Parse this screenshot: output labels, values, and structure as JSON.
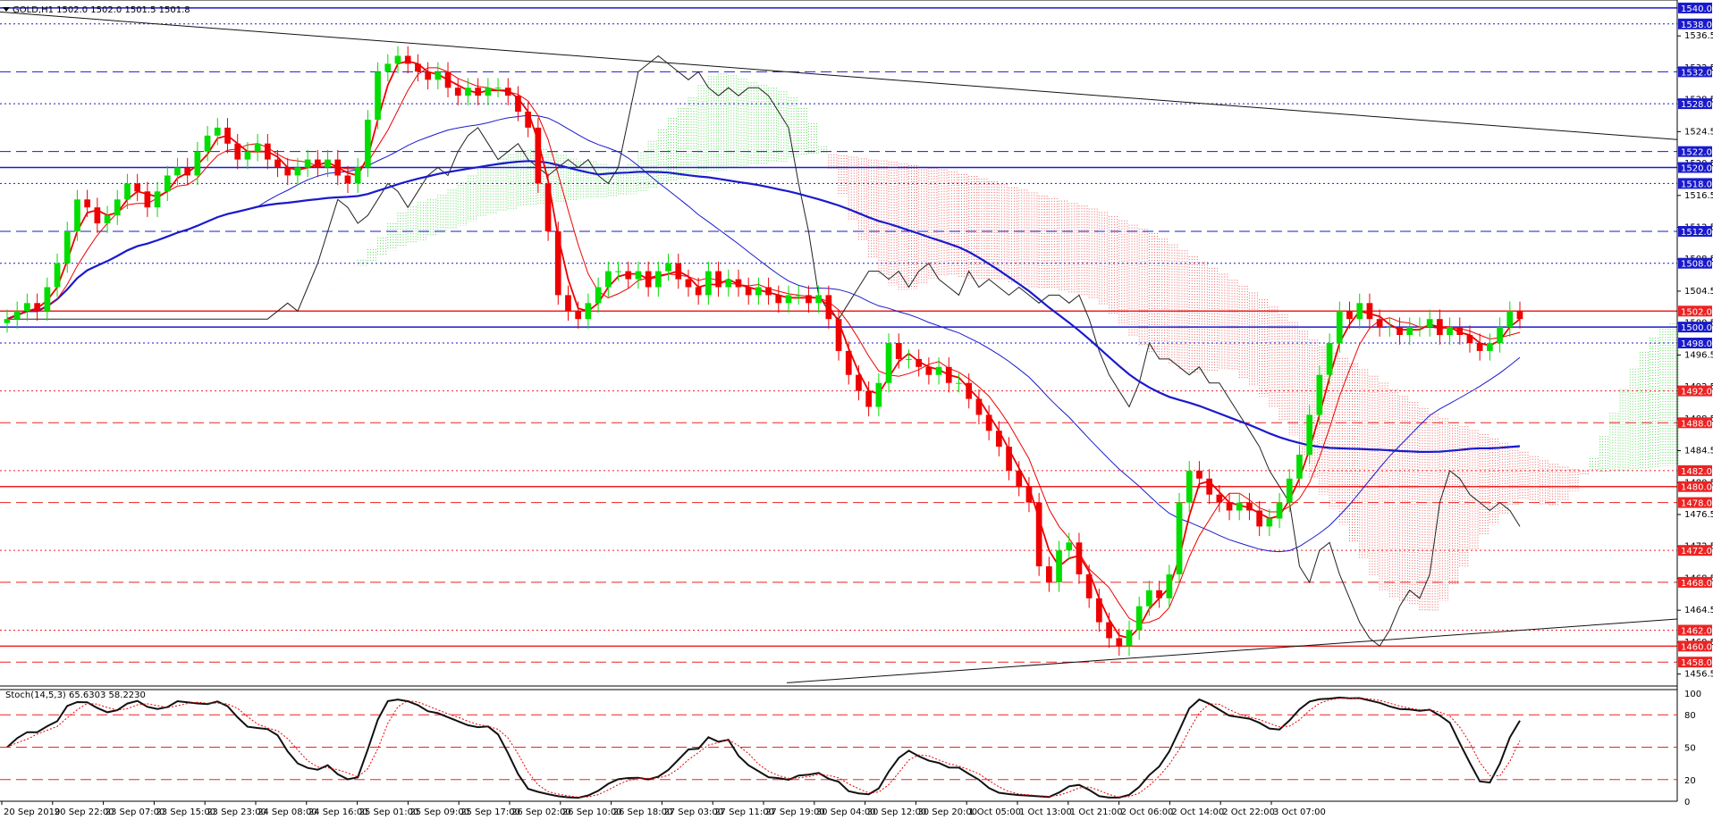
{
  "header": {
    "title": "GOLD,H1  1502.0 1502.0 1501.5 1501.8"
  },
  "oscillator": {
    "title": "Stoch(14,5,3) 65.6303 58.2230",
    "levels": [
      20,
      50,
      80
    ],
    "ticks": [
      "100",
      "80",
      "50",
      "20",
      "0"
    ]
  },
  "colors": {
    "up": "#00dd00",
    "down": "#ee0000",
    "bg": "#ffffff",
    "grid_blue": "#0000cc",
    "grid_red": "#ee0000",
    "ma": "#1a1acc",
    "label_blue": "#1a1acc",
    "label_red": "#ee2222"
  },
  "chart_data": {
    "type": "candlestick",
    "symbol": "GOLD",
    "timeframe": "H1",
    "ylim": [
      1455,
      1541
    ],
    "price_ticks": [
      "1536.5",
      "1532.5",
      "1528.5",
      "1524.5",
      "1520.5",
      "1516.5",
      "1512.5",
      "1508.5",
      "1504.5",
      "1500.5",
      "1496.5",
      "1492.5",
      "1488.5",
      "1484.5",
      "1480.5",
      "1476.5",
      "1472.5",
      "1468.5",
      "1464.5",
      "1460.5",
      "1456.5"
    ],
    "x_labels": [
      "20 Sep 2019",
      "20 Sep 22:00",
      "23 Sep 07:00",
      "23 Sep 15:00",
      "23 Sep 23:00",
      "24 Sep 08:00",
      "24 Sep 16:00",
      "25 Sep 01:00",
      "25 Sep 09:00",
      "25 Sep 17:00",
      "26 Sep 02:00",
      "26 Sep 10:00",
      "26 Sep 18:00",
      "27 Sep 03:00",
      "27 Sep 11:00",
      "27 Sep 19:00",
      "30 Sep 04:00",
      "30 Sep 12:00",
      "30 Sep 20:00",
      "1 Oct 05:00",
      "1 Oct 13:00",
      "1 Oct 21:00",
      "2 Oct 06:00",
      "2 Oct 14:00",
      "2 Oct 22:00",
      "3 Oct 07:00"
    ],
    "levels": [
      {
        "price": 1540.0,
        "label": "1540.0",
        "style": "solid",
        "color": "blue"
      },
      {
        "price": 1538.0,
        "label": "1538.0",
        "style": "dotted",
        "color": "blue"
      },
      {
        "price": 1532.0,
        "label": "1532.0",
        "style": "dashed",
        "color": "blue"
      },
      {
        "price": 1528.0,
        "label": "1528.0",
        "style": "dotted",
        "color": "blue"
      },
      {
        "price": 1522.0,
        "label": "1522.0",
        "style": "dashed",
        "color": "blue"
      },
      {
        "price": 1520.0,
        "label": "1520.0",
        "style": "solid",
        "color": "blue"
      },
      {
        "price": 1518.0,
        "label": "1518.0",
        "style": "dotted",
        "color": "blue"
      },
      {
        "price": 1512.0,
        "label": "1512.0",
        "style": "dashed",
        "color": "blue"
      },
      {
        "price": 1508.0,
        "label": "1508.0",
        "style": "dotted",
        "color": "blue"
      },
      {
        "price": 1502.0,
        "label": "1502.0",
        "style": "solid",
        "color": "red"
      },
      {
        "price": 1500.0,
        "label": "1500.0",
        "style": "solid",
        "color": "blue"
      },
      {
        "price": 1498.0,
        "label": "1498.0",
        "style": "dotted",
        "color": "blue"
      },
      {
        "price": 1492.0,
        "label": "1492.0",
        "style": "dotted",
        "color": "red"
      },
      {
        "price": 1488.0,
        "label": "1488.0",
        "style": "dashed",
        "color": "red"
      },
      {
        "price": 1482.0,
        "label": "1482.0",
        "style": "dotted",
        "color": "red"
      },
      {
        "price": 1480.0,
        "label": "1480.0",
        "style": "solid",
        "color": "red"
      },
      {
        "price": 1478.0,
        "label": "1478.0",
        "style": "dashed",
        "color": "red"
      },
      {
        "price": 1472.0,
        "label": "1472.0",
        "style": "dotted",
        "color": "red"
      },
      {
        "price": 1468.0,
        "label": "1468.0",
        "style": "dashed",
        "color": "red"
      },
      {
        "price": 1462.0,
        "label": "1462.0",
        "style": "dotted",
        "color": "red"
      },
      {
        "price": 1460.0,
        "label": "1460.0",
        "style": "solid",
        "color": "red"
      },
      {
        "price": 1458.0,
        "label": "1458.0",
        "style": "dashed",
        "color": "red"
      }
    ],
    "close_series": [
      1501,
      1502,
      1503,
      1502,
      1505,
      1508,
      1512,
      1516,
      1515,
      1513,
      1514,
      1516,
      1518,
      1517,
      1515,
      1517,
      1519,
      1520,
      1519,
      1522,
      1524,
      1525,
      1523,
      1521,
      1522,
      1523,
      1521,
      1520,
      1519,
      1520,
      1521,
      1520,
      1521,
      1519,
      1518,
      1520,
      1526,
      1532,
      1533,
      1534,
      1533,
      1532,
      1531,
      1532,
      1530,
      1529,
      1530,
      1529,
      1530,
      1530,
      1529,
      1527,
      1525,
      1518,
      1512,
      1504,
      1502,
      1501,
      1503,
      1505,
      1507,
      1507,
      1506,
      1507,
      1505,
      1507,
      1508,
      1506,
      1505,
      1504,
      1507,
      1505,
      1506,
      1505,
      1504,
      1505,
      1504,
      1503,
      1504,
      1504,
      1503,
      1504,
      1501,
      1497,
      1494,
      1492,
      1490,
      1493,
      1498,
      1496,
      1496,
      1495,
      1494,
      1495,
      1493,
      1493,
      1491,
      1489,
      1487,
      1485,
      1482,
      1480,
      1478,
      1470,
      1468,
      1472,
      1473,
      1469,
      1466,
      1463,
      1461,
      1460,
      1462,
      1465,
      1467,
      1466,
      1469,
      1478,
      1482,
      1481,
      1479,
      1478,
      1477,
      1478,
      1477,
      1475,
      1476,
      1478,
      1481,
      1484,
      1489,
      1494,
      1498,
      1502,
      1501,
      1503,
      1501,
      1500,
      1500,
      1499,
      1500,
      1500,
      1501,
      1499,
      1500,
      1499,
      1498,
      1497,
      1498,
      1500,
      1502,
      1501
    ]
  }
}
